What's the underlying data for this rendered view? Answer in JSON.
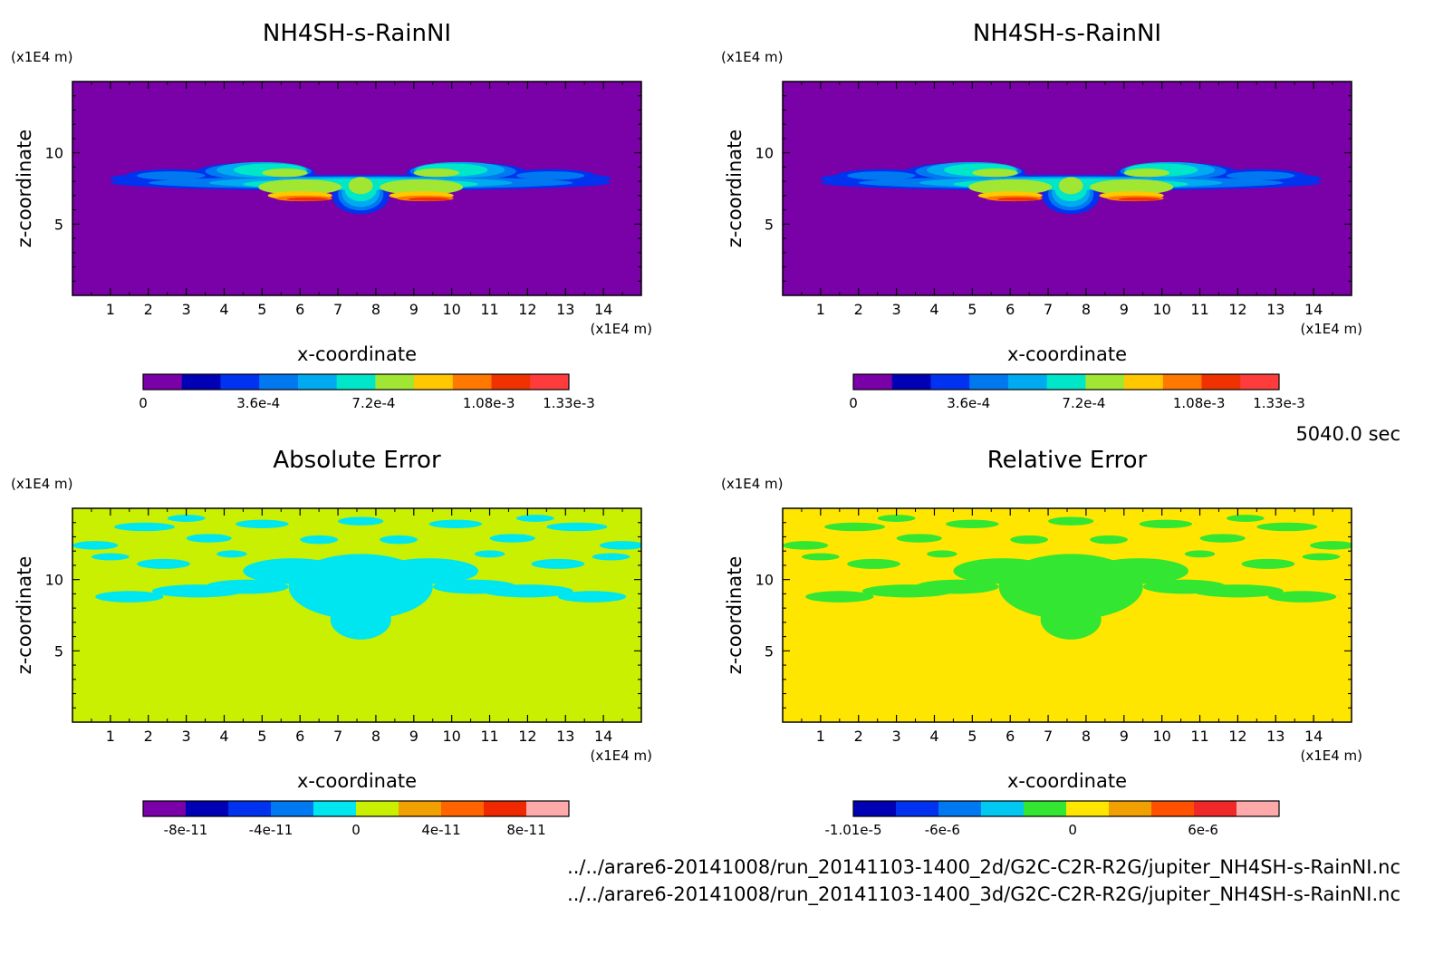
{
  "figure": {
    "timestamp": "5040.0 sec",
    "source_files": [
      "../../arare6-20141008/run_20141103-1400_2d/G2C-C2R-R2G/jupiter_NH4SH-s-RainNI.nc",
      "../../arare6-20141008/run_20141103-1400_3d/G2C-C2R-R2G/jupiter_NH4SH-s-RainNI.nc"
    ]
  },
  "chart_data": [
    {
      "type": "heatmap",
      "title": "NH4SH-s-RainNI",
      "xlabel": "x-coordinate",
      "ylabel": "z-coordinate",
      "x_unit": "(x1E4 m)",
      "y_unit": "(x1E4 m)",
      "xlim": [
        0,
        15
      ],
      "ylim": [
        0,
        15
      ],
      "x_ticks": [
        "1",
        "2",
        "3",
        "4",
        "5",
        "6",
        "7",
        "8",
        "9",
        "10",
        "11",
        "12",
        "13",
        "14"
      ],
      "y_ticks": [
        "5",
        "10"
      ],
      "colorbar": {
        "colors": [
          "#7a00a8",
          "#0000b4",
          "#0032f0",
          "#0078f0",
          "#00aaf0",
          "#00e6c8",
          "#a0e632",
          "#ffc800",
          "#ff7800",
          "#f03200",
          "#ff3c3c"
        ],
        "tick_labels": [
          "0",
          "3.6e-4",
          "7.2e-4",
          "1.08e-3",
          "1.33e-3"
        ],
        "tick_values": [
          0,
          0.00036,
          0.00072,
          0.00108,
          0.00133
        ],
        "range": [
          0,
          0.00133
        ]
      },
      "background_color": "#7a00a8"
    },
    {
      "type": "heatmap",
      "title": "NH4SH-s-RainNI",
      "xlabel": "x-coordinate",
      "ylabel": "z-coordinate",
      "x_unit": "(x1E4 m)",
      "y_unit": "(x1E4 m)",
      "xlim": [
        0,
        15
      ],
      "ylim": [
        0,
        15
      ],
      "x_ticks": [
        "1",
        "2",
        "3",
        "4",
        "5",
        "6",
        "7",
        "8",
        "9",
        "10",
        "11",
        "12",
        "13",
        "14"
      ],
      "y_ticks": [
        "5",
        "10"
      ],
      "colorbar": {
        "colors": [
          "#7a00a8",
          "#0000b4",
          "#0032f0",
          "#0078f0",
          "#00aaf0",
          "#00e6c8",
          "#a0e632",
          "#ffc800",
          "#ff7800",
          "#f03200",
          "#ff3c3c"
        ],
        "tick_labels": [
          "0",
          "3.6e-4",
          "7.2e-4",
          "1.08e-3",
          "1.33e-3"
        ],
        "tick_values": [
          0,
          0.00036,
          0.00072,
          0.00108,
          0.00133
        ],
        "range": [
          0,
          0.00133
        ]
      },
      "background_color": "#7a00a8"
    },
    {
      "type": "heatmap",
      "title": "Absolute Error",
      "xlabel": "x-coordinate",
      "ylabel": "z-coordinate",
      "x_unit": "(x1E4 m)",
      "y_unit": "(x1E4 m)",
      "xlim": [
        0,
        15
      ],
      "ylim": [
        0,
        15
      ],
      "x_ticks": [
        "1",
        "2",
        "3",
        "4",
        "5",
        "6",
        "7",
        "8",
        "9",
        "10",
        "11",
        "12",
        "13",
        "14"
      ],
      "y_ticks": [
        "5",
        "10"
      ],
      "colorbar": {
        "colors": [
          "#7a00a8",
          "#0000b4",
          "#0032f0",
          "#0078f0",
          "#00e6f0",
          "#c8f000",
          "#f0a000",
          "#ff6400",
          "#f02800",
          "#ffaaaa"
        ],
        "tick_labels": [
          "-8e-11",
          "-4e-11",
          "0",
          "4e-11",
          "8e-11"
        ],
        "tick_values": [
          -8e-11,
          -4e-11,
          0,
          4e-11,
          8e-11
        ],
        "range": [
          -1e-10,
          1e-10
        ]
      },
      "background_color": "#c8f000",
      "blob_color": "#00e6f0"
    },
    {
      "type": "heatmap",
      "title": "Relative Error",
      "xlabel": "x-coordinate",
      "ylabel": "z-coordinate",
      "x_unit": "(x1E4 m)",
      "y_unit": "(x1E4 m)",
      "xlim": [
        0,
        15
      ],
      "ylim": [
        0,
        15
      ],
      "x_ticks": [
        "1",
        "2",
        "3",
        "4",
        "5",
        "6",
        "7",
        "8",
        "9",
        "10",
        "11",
        "12",
        "13",
        "14"
      ],
      "y_ticks": [
        "5",
        "10"
      ],
      "colorbar": {
        "colors": [
          "#0000b4",
          "#0032f0",
          "#0078f0",
          "#00c8f0",
          "#32e632",
          "#ffe600",
          "#f0a000",
          "#ff5000",
          "#f02828",
          "#ffaaaa"
        ],
        "tick_labels": [
          "-1.01e-5",
          "-6e-6",
          "0",
          "6e-6"
        ],
        "tick_values": [
          -1.01e-05,
          -6e-06,
          0,
          6e-06
        ],
        "range": [
          -1.01e-05,
          9.5e-06
        ]
      },
      "background_color": "#ffe600",
      "blob_color": "#32e632"
    }
  ]
}
